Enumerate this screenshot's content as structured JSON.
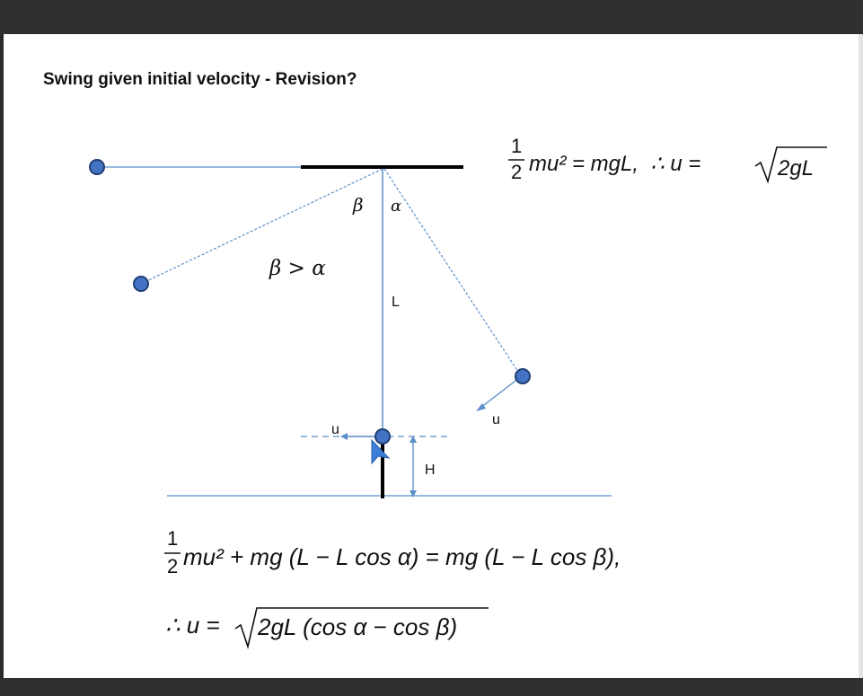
{
  "slide": {
    "title": "Swing given initial velocity - Revision?"
  },
  "labels": {
    "beta": "β",
    "alpha": "α",
    "inequality": "β > α",
    "length": "L",
    "velocity_right": "u",
    "velocity_left": "u",
    "height": "H"
  },
  "equations": {
    "top": {
      "frac_num": "1",
      "frac_den": "2",
      "main": "mu² = mgL,  ∴ u = ",
      "radicand": "2gL"
    },
    "energy": {
      "frac_num": "1",
      "frac_den": "2",
      "main": "mu² + mg (L − L cos α) = mg (L − L cos β),"
    },
    "result": {
      "prefix": "∴ u = ",
      "radicand": "2gL (cos α − cos β)"
    }
  },
  "colors": {
    "line_blue": "#5b8fc9",
    "bob_fill": "#4472c4",
    "bob_stroke": "#1f3f73",
    "bar": "#000000",
    "cursor": "#3d7fd6"
  }
}
